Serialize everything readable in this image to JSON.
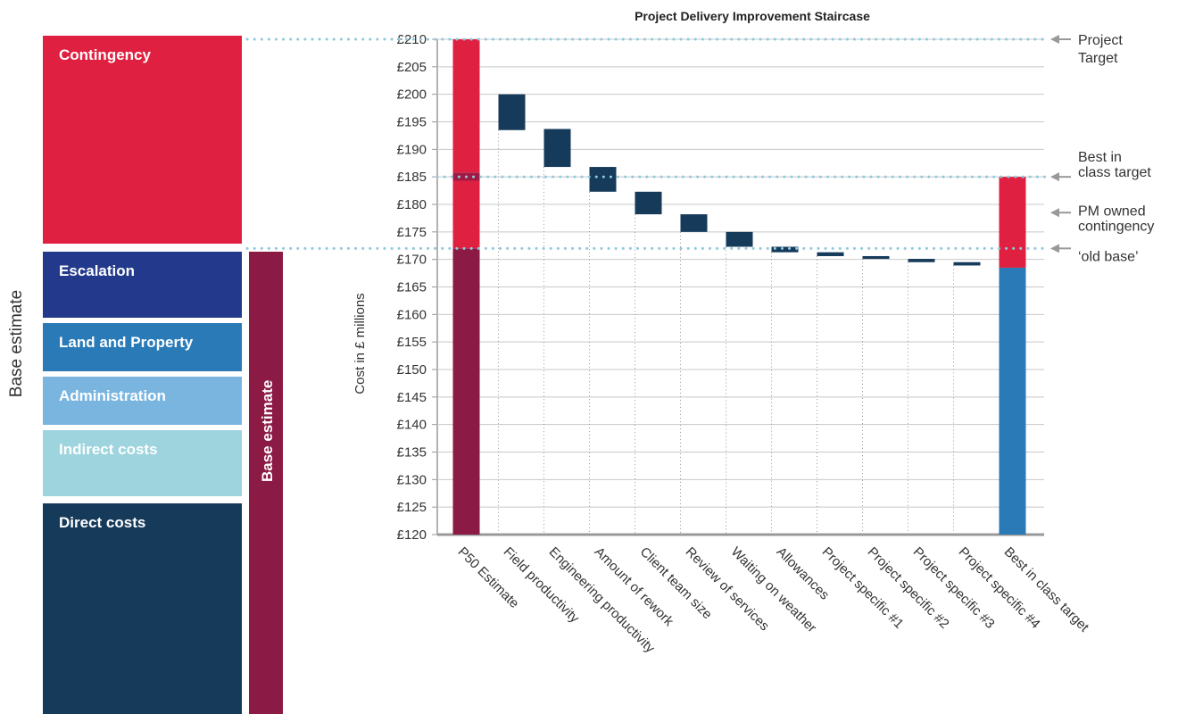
{
  "panel": {
    "blocks": [
      "Contingency",
      "Escalation",
      "Land and Property",
      "Administration",
      "Indirect costs",
      "Direct costs"
    ],
    "bar_label": "Base estimate",
    "side_label": "Base estimate"
  },
  "chart_data": {
    "type": "waterfall",
    "title": "Project Delivery Improvement Staircase",
    "ylabel": "Cost in £ millions",
    "categories": [
      "P50 Estimate",
      "Field productivity",
      "Engineering productivity",
      "Amount of rework",
      "Client team size",
      "Review of services",
      "Waiting on weather",
      "Allowances",
      "Project specific #1",
      "Project specific #2",
      "Project specific #3",
      "Project specific #4",
      "Best in class target"
    ],
    "ylim": [
      120,
      210
    ],
    "yticks": [
      {
        "value": 120,
        "label": "£120"
      },
      {
        "value": 125,
        "label": "£125"
      },
      {
        "value": 130,
        "label": "£130"
      },
      {
        "value": 135,
        "label": "£135"
      },
      {
        "value": 140,
        "label": "£140"
      },
      {
        "value": 145,
        "label": "£145"
      },
      {
        "value": 150,
        "label": "£150"
      },
      {
        "value": 155,
        "label": "£155"
      },
      {
        "value": 160,
        "label": "£160"
      },
      {
        "value": 165,
        "label": "£165"
      },
      {
        "value": 170,
        "label": "£170"
      },
      {
        "value": 175,
        "label": "£175"
      },
      {
        "value": 180,
        "label": "£180"
      },
      {
        "value": 185,
        "label": "£185"
      },
      {
        "value": 190,
        "label": "£190"
      },
      {
        "value": 195,
        "label": "£195"
      },
      {
        "value": 200,
        "label": "£200"
      },
      {
        "value": 205,
        "label": "£205"
      },
      {
        "value": 210,
        "label": "£210"
      }
    ],
    "grid": true,
    "first_bar": [
      {
        "value": 52,
        "color": "#8b1a44"
      },
      {
        "value": 12.3,
        "color": "#e02040"
      },
      {
        "value": 1.5,
        "color": "#a01a44"
      },
      {
        "value": 24.2,
        "color": "#e02040"
      }
    ],
    "last_bar": [
      {
        "value": 48.5,
        "color": "#2a7ab8"
      },
      {
        "value": 16.5,
        "color": "#e02040"
      }
    ],
    "steps": {
      "color": "#153a5a",
      "high": [
        null,
        200,
        193.7,
        186.8,
        182.3,
        178.2,
        175,
        172.3,
        171.3,
        170.6,
        170.1,
        169.5,
        null
      ],
      "low": [
        null,
        193.5,
        186.8,
        182.3,
        178.2,
        175,
        172.3,
        171.3,
        170.6,
        170.1,
        169.5,
        168.9,
        null
      ]
    },
    "callouts": [
      {
        "value": 210,
        "lines": [
          "Project",
          "Target"
        ],
        "guide": true,
        "guide_from_panel": true
      },
      {
        "value": 185,
        "lines": [
          "Best in",
          "class target"
        ],
        "guide": true,
        "guide_from_panel": false
      },
      {
        "value": 178.5,
        "lines": [
          "PM owned",
          "contingency"
        ],
        "guide": false,
        "guide_from_panel": false
      },
      {
        "value": 172,
        "lines": [
          "‘old base’"
        ],
        "guide": true,
        "guide_from_panel": true
      }
    ]
  }
}
